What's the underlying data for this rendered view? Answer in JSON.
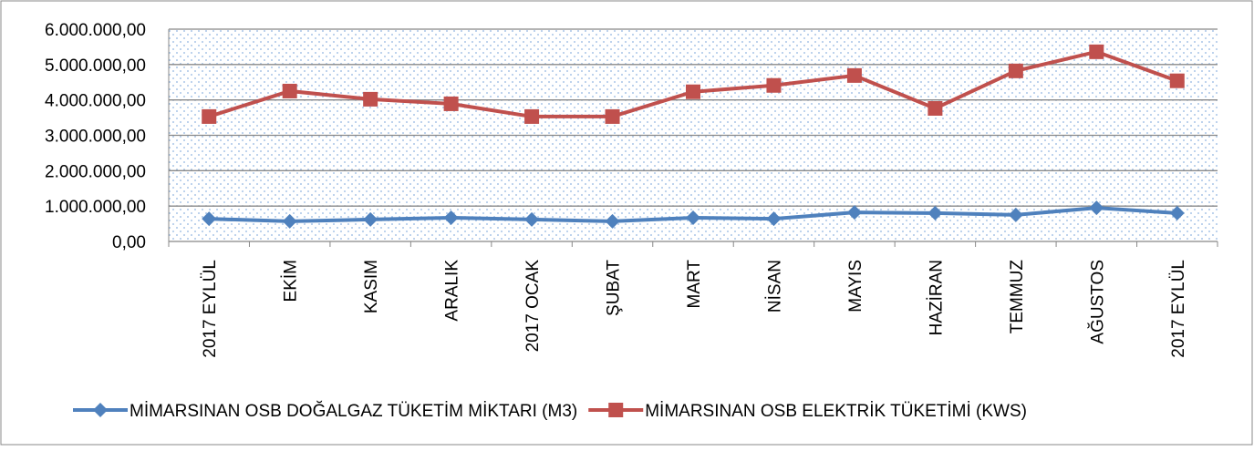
{
  "chart_data": {
    "type": "line",
    "categories": [
      "2017 EYLÜL",
      "EKİM",
      "KASIM",
      "ARALIK",
      "2017 OCAK",
      "ŞUBAT",
      "MART",
      "NİSAN",
      "MAYIS",
      "HAZİRAN",
      "TEMMUZ",
      "AĞUSTOS",
      "2017 EYLÜL"
    ],
    "series": [
      {
        "name": "MİMARSINAN OSB DOĞALGAZ TÜKETİM MİKTARI (M3)",
        "color": "#4f81bd",
        "marker": "diamond",
        "values": [
          640000,
          570000,
          620000,
          670000,
          620000,
          570000,
          670000,
          640000,
          820000,
          800000,
          750000,
          950000,
          800000
        ]
      },
      {
        "name": "MİMARSINAN OSB ELEKTRİK TÜKETİMİ (KWS)",
        "color": "#c0504d",
        "marker": "square",
        "values": [
          3530000,
          4250000,
          4020000,
          3890000,
          3530000,
          3530000,
          4230000,
          4410000,
          4690000,
          3760000,
          4820000,
          5360000,
          4540000
        ]
      }
    ],
    "ylim": [
      0,
      6000000
    ],
    "yticks": [
      {
        "value": 0,
        "label": "0,00"
      },
      {
        "value": 1000000,
        "label": "1.000.000,00"
      },
      {
        "value": 2000000,
        "label": "2.000.000,00"
      },
      {
        "value": 3000000,
        "label": "3.000.000,00"
      },
      {
        "value": 4000000,
        "label": "4.000.000,00"
      },
      {
        "value": 5000000,
        "label": "5.000.000,00"
      },
      {
        "value": 6000000,
        "label": "6.000.000,00"
      }
    ],
    "grid": true,
    "legend": "bottom"
  }
}
